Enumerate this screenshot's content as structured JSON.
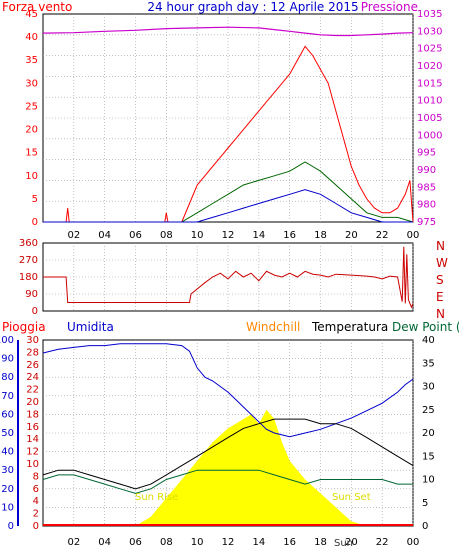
{
  "header": {
    "left": "Forza vento",
    "title": "24 hour graph day : 12 Aprile 2015",
    "right": "Pressione"
  },
  "compass": [
    "N",
    "W",
    "S",
    "E",
    "N"
  ],
  "lower_header": {
    "pioggia": "Pioggia",
    "umidita": "Umidita",
    "windchill": "Windchill",
    "temperatura": "Temperatura",
    "dewpoint": "Dew Point (°C"
  },
  "sun_labels": {
    "sunrise": "Sun Rise",
    "sunset": "Sun Set",
    "sun": "Sun"
  },
  "colors": {
    "wind_gust": "#ff0000",
    "wind_avg": "#006600",
    "wind_low": "#0000cc",
    "pressure": "#cc00cc",
    "direction": "#cc0000",
    "humidity": "#0000cc",
    "temperature": "#000000",
    "dewpoint": "#006633",
    "solar": "#ffff00",
    "rain": "#ff0000",
    "grid": "#999999"
  },
  "chart_data": [
    {
      "type": "line",
      "name": "wind-pressure",
      "x_ticks": [
        "02",
        "04",
        "06",
        "08",
        "10",
        "12",
        "14",
        "16",
        "18",
        "20",
        "22",
        "00"
      ],
      "y_left_ticks": [
        "0",
        "5",
        "10",
        "15",
        "20",
        "25",
        "30",
        "35",
        "40",
        "45"
      ],
      "y_right_ticks": [
        "975",
        "980",
        "985",
        "990",
        "995",
        "1000",
        "1005",
        "1010",
        "1015",
        "1020",
        "1025",
        "1030",
        "1035"
      ],
      "ylim_left": [
        0,
        45
      ],
      "ylim_right": [
        975,
        1035
      ],
      "series": [
        {
          "key": "gust",
          "color": "#ff0000",
          "hours": [
            0,
            1.5,
            1.6,
            1.7,
            7.9,
            8,
            8.1,
            9,
            9.5,
            10,
            10.5,
            11,
            11.5,
            12,
            12.5,
            13,
            13.5,
            14,
            14.5,
            15,
            15.5,
            16,
            16.5,
            17,
            17.5,
            18,
            18.5,
            19,
            19.5,
            20,
            20.5,
            21,
            21.5,
            22,
            22.5,
            23,
            23.5,
            23.8,
            24
          ],
          "values": [
            0,
            0,
            3,
            0,
            0,
            2,
            0,
            0,
            4,
            8,
            10,
            12,
            14,
            16,
            18,
            20,
            22,
            24,
            26,
            28,
            30,
            32,
            35,
            38,
            36,
            33,
            30,
            24,
            18,
            12,
            8,
            5,
            3,
            2,
            2,
            3,
            6,
            9,
            0
          ]
        },
        {
          "key": "avg",
          "color": "#006600",
          "hours": [
            0,
            9,
            10,
            11,
            12,
            13,
            14,
            15,
            16,
            17,
            17.5,
            18,
            19,
            20,
            21,
            22,
            23,
            24
          ],
          "values": [
            0,
            0,
            2,
            4,
            6,
            8,
            9,
            10,
            11,
            13,
            12,
            11,
            8,
            5,
            2,
            1,
            1,
            0
          ]
        },
        {
          "key": "low",
          "color": "#0000cc",
          "hours": [
            0,
            10,
            11,
            12,
            13,
            14,
            15,
            16,
            17,
            18,
            19,
            20,
            21,
            22,
            23,
            24
          ],
          "values": [
            0,
            0,
            1,
            2,
            3,
            4,
            5,
            6,
            7,
            6,
            4,
            2,
            1,
            0,
            0,
            0
          ]
        },
        {
          "key": "pressure",
          "color": "#cc00cc",
          "hours": [
            0,
            2,
            4,
            6,
            8,
            10,
            12,
            14,
            15,
            16,
            17,
            18,
            19,
            20,
            21,
            22,
            23,
            24
          ],
          "values": [
            1029.5,
            1029.6,
            1030.0,
            1030.3,
            1030.8,
            1031.0,
            1031.2,
            1031.0,
            1030.5,
            1030.0,
            1029.5,
            1029.0,
            1028.8,
            1028.8,
            1029.0,
            1029.2,
            1029.5,
            1029.6
          ]
        }
      ]
    },
    {
      "type": "line",
      "name": "wind-direction",
      "x_ticks": [
        "02",
        "04",
        "06",
        "08",
        "10",
        "12",
        "14",
        "16",
        "18",
        "20",
        "22",
        "00"
      ],
      "y_ticks": [
        "0",
        "90",
        "180",
        "270",
        "360"
      ],
      "ylim": [
        0,
        360
      ],
      "series": [
        {
          "key": "direction",
          "color": "#cc0000",
          "hours": [
            0,
            1.5,
            1.6,
            9.5,
            9.6,
            10.5,
            11,
            11.5,
            12,
            12.5,
            13,
            13.5,
            14,
            14.5,
            15,
            15.5,
            16,
            16.5,
            17,
            17.5,
            18,
            18.5,
            19,
            20,
            21,
            21.5,
            22,
            22.5,
            23,
            23.3,
            23.4,
            23.5,
            23.6,
            23.7,
            23.8,
            23.9,
            24
          ],
          "values": [
            180,
            180,
            45,
            45,
            90,
            150,
            180,
            200,
            170,
            210,
            180,
            200,
            160,
            210,
            190,
            180,
            200,
            180,
            210,
            195,
            190,
            180,
            195,
            190,
            185,
            180,
            170,
            185,
            180,
            50,
            340,
            40,
            300,
            60,
            40,
            20,
            40
          ]
        }
      ]
    },
    {
      "type": "line",
      "name": "rain-humidity-temperature",
      "x_ticks": [
        "02",
        "04",
        "06",
        "08",
        "10",
        "12",
        "14",
        "16",
        "18",
        "20",
        "22",
        "00"
      ],
      "y_pioggia_ticks": [
        "0",
        "2",
        "4",
        "6",
        "8",
        "10",
        "12",
        "14",
        "16",
        "18",
        "20",
        "22",
        "24",
        "26",
        "28",
        "30"
      ],
      "y_umidita_ticks": [
        "0",
        "10",
        "20",
        "30",
        "40",
        "50",
        "60",
        "70",
        "80",
        "90",
        "100"
      ],
      "y_temp_ticks": [
        "0",
        "5",
        "10",
        "15",
        "20",
        "25",
        "30",
        "35",
        "40"
      ],
      "ylim_humidity": [
        0,
        100
      ],
      "ylim_temperature": [
        0,
        40
      ],
      "series": [
        {
          "key": "humidity",
          "color": "#0000cc",
          "hours": [
            0,
            1,
            2,
            3,
            4,
            5,
            6,
            7,
            8,
            9,
            9.5,
            10,
            10.5,
            11,
            11.5,
            12,
            12.5,
            13,
            13.5,
            14,
            14.5,
            15,
            15.5,
            16,
            17,
            18,
            19,
            20,
            21,
            22,
            23,
            23.5,
            24
          ],
          "values": [
            93,
            95,
            96,
            97,
            97,
            98,
            98,
            98,
            98,
            97,
            94,
            85,
            80,
            78,
            75,
            72,
            68,
            64,
            60,
            56,
            52,
            50,
            49,
            48,
            50,
            52,
            55,
            58,
            62,
            66,
            72,
            76,
            79
          ]
        },
        {
          "key": "temperature",
          "color": "#000000",
          "hours": [
            0,
            1,
            2,
            3,
            4,
            5,
            6,
            7,
            8,
            9,
            10,
            11,
            12,
            13,
            14,
            15,
            16,
            17,
            18,
            19,
            20,
            21,
            22,
            23,
            23.5,
            24
          ],
          "values": [
            11,
            12,
            12,
            11,
            10,
            9,
            8,
            9,
            11,
            13,
            15,
            17,
            19,
            21,
            22,
            23,
            23,
            23,
            22,
            22,
            21,
            19,
            17,
            15,
            14,
            13
          ]
        },
        {
          "key": "dewpoint",
          "color": "#006633",
          "hours": [
            0,
            1,
            2,
            3,
            4,
            5,
            6,
            7,
            8,
            9,
            10,
            11,
            12,
            13,
            14,
            15,
            16,
            17,
            18,
            19,
            20,
            21,
            22,
            23,
            24
          ],
          "values": [
            10,
            11,
            11,
            10,
            9,
            8,
            7,
            8,
            10,
            11,
            12,
            12,
            12,
            12,
            12,
            11,
            10,
            9,
            10,
            10,
            10,
            10,
            10,
            9,
            9
          ]
        },
        {
          "key": "solar",
          "color": "#ffff00",
          "hours": [
            0,
            6,
            7,
            8,
            9,
            10,
            11,
            12,
            13,
            13.5,
            14,
            14.5,
            15,
            15.5,
            16,
            17,
            18,
            19,
            20,
            21,
            24
          ],
          "values": [
            0,
            0,
            2,
            6,
            10,
            14,
            18,
            21,
            23,
            24,
            22,
            25,
            23,
            18,
            14,
            10,
            7,
            4,
            1,
            0,
            0
          ]
        }
      ]
    }
  ]
}
